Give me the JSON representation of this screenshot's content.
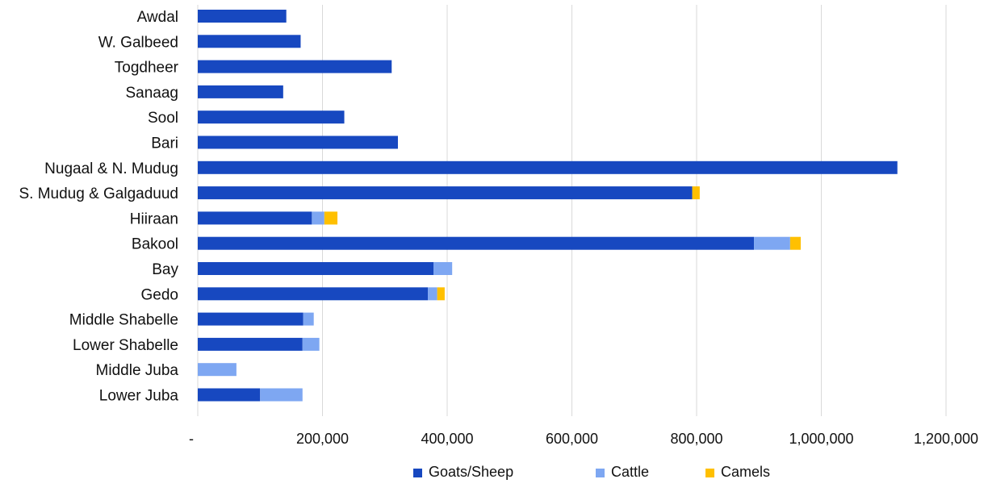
{
  "chart_data": {
    "type": "bar",
    "orientation": "horizontal",
    "stacked": true,
    "categories": [
      "Awdal",
      "W. Galbeed",
      "Togdheer",
      "Sanaag",
      "Sool",
      "Bari",
      "Nugaal & N. Mudug",
      "S. Mudug & Galgaduud",
      "Hiiraan",
      "Bakool",
      "Bay",
      "Gedo",
      "Middle Shabelle",
      "Lower Shabelle",
      "Middle Juba",
      "Lower Juba"
    ],
    "series": [
      {
        "name": "Goats/Sheep",
        "color": "#1748c0",
        "values": [
          142000,
          165000,
          311000,
          137000,
          235000,
          321000,
          1122000,
          793000,
          183000,
          892000,
          378000,
          369000,
          169000,
          168000,
          0,
          100000
        ]
      },
      {
        "name": "Cattle",
        "color": "#7ea7f2",
        "values": [
          0,
          0,
          0,
          0,
          0,
          0,
          0,
          0,
          20000,
          58000,
          30000,
          15000,
          17000,
          27000,
          62000,
          68000
        ]
      },
      {
        "name": "Camels",
        "color": "#ffc000",
        "values": [
          0,
          0,
          0,
          0,
          0,
          0,
          0,
          12000,
          21000,
          17000,
          0,
          12000,
          0,
          0,
          0,
          0
        ]
      }
    ],
    "x_ticks": [
      {
        "value": 0,
        "label": "-"
      },
      {
        "value": 200000,
        "label": "200,000"
      },
      {
        "value": 400000,
        "label": "400,000"
      },
      {
        "value": 600000,
        "label": "600,000"
      },
      {
        "value": 800000,
        "label": "800,000"
      },
      {
        "value": 1000000,
        "label": "1,000,000"
      },
      {
        "value": 1200000,
        "label": "1,200,000"
      }
    ],
    "xlim": [
      0,
      1200000
    ],
    "grid": "vertical",
    "legend_position": "bottom",
    "title": "",
    "xlabel": "",
    "ylabel": ""
  }
}
